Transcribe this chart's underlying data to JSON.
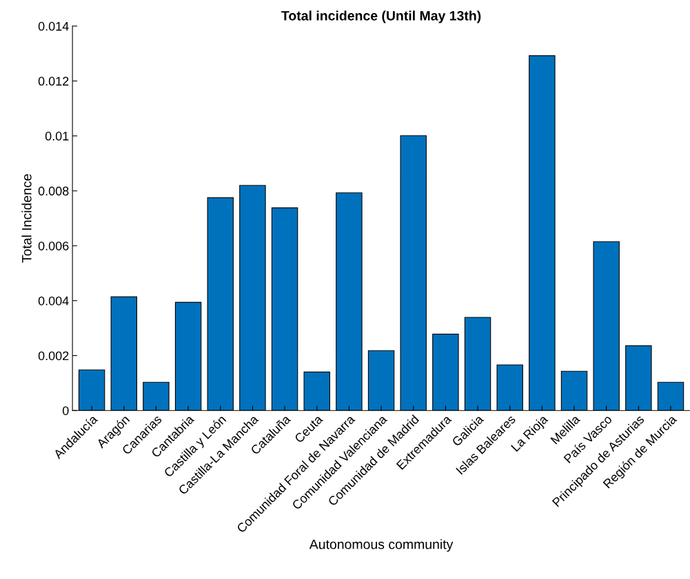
{
  "chart_data": {
    "type": "bar",
    "title": "Total incidence (Until May 13th)",
    "xlabel": "Autonomous community",
    "ylabel": "Total Incidence",
    "categories": [
      "Andalucía",
      "Aragón",
      "Canarias",
      "Cantabria",
      "Castilla y León",
      "Castilla-La Mancha",
      "Cataluña",
      "Ceuta",
      "Comunidad Foral de Navarra",
      "Comunidad Valenciana",
      "Comunidad de Madrid",
      "Extremadura",
      "Galicia",
      "Islas Baleares",
      "La Rioja",
      "Melilla",
      "País Vasco",
      "Principado de Asturias",
      "Región de Murcia"
    ],
    "values": [
      0.00148,
      0.00414,
      0.00103,
      0.00394,
      0.00775,
      0.0082,
      0.00738,
      0.0014,
      0.00793,
      0.00218,
      0.01001,
      0.00278,
      0.00339,
      0.00166,
      0.01292,
      0.00143,
      0.00615,
      0.00236,
      0.00103
    ],
    "color": "#0072bd",
    "ylim": [
      0,
      0.014
    ],
    "yticks": [
      {
        "value": 0,
        "label": "0"
      },
      {
        "value": 0.002,
        "label": "0.002"
      },
      {
        "value": 0.004,
        "label": "0.004"
      },
      {
        "value": 0.006,
        "label": "0.006"
      },
      {
        "value": 0.008,
        "label": "0.008"
      },
      {
        "value": 0.01,
        "label": "0.01"
      },
      {
        "value": 0.012,
        "label": "0.012"
      },
      {
        "value": 0.014,
        "label": "0.014"
      }
    ],
    "grid": false
  }
}
